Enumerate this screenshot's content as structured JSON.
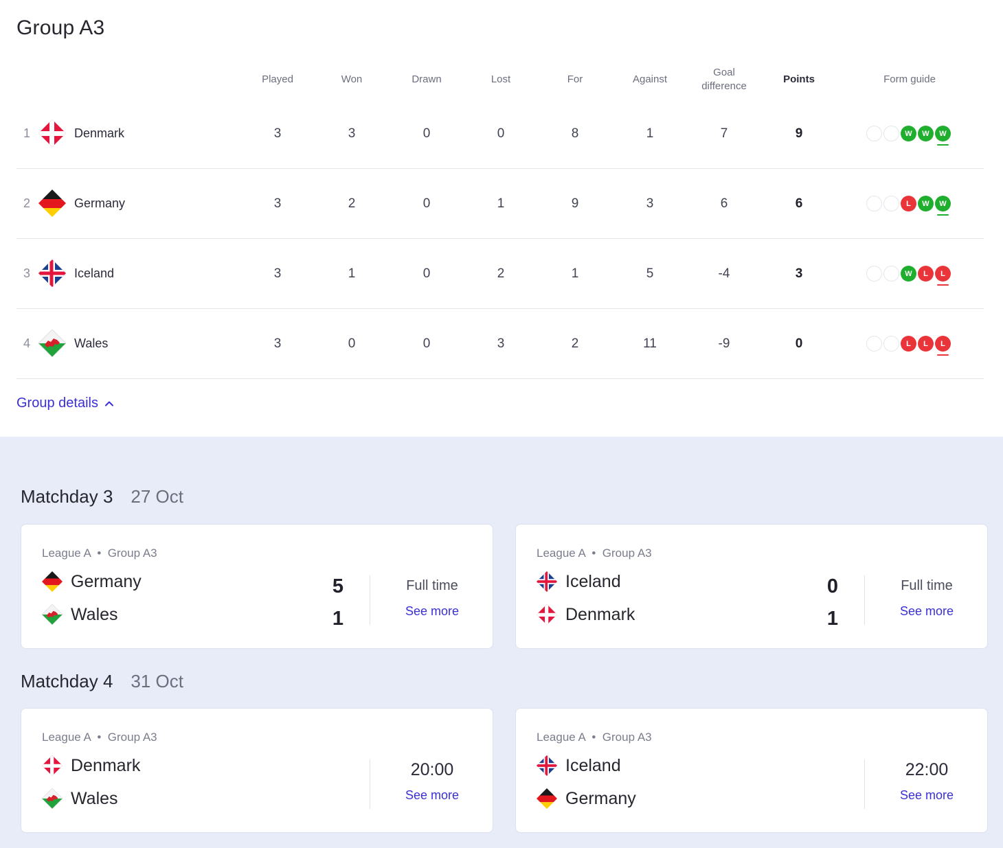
{
  "group": {
    "title": "Group A3"
  },
  "table": {
    "headers": {
      "played": "Played",
      "won": "Won",
      "drawn": "Drawn",
      "lost": "Lost",
      "for": "For",
      "against": "Against",
      "goal_difference": "Goal difference",
      "points": "Points",
      "form_guide": "Form guide"
    },
    "rows": [
      {
        "pos": "1",
        "team": "Denmark",
        "flag": "denmark-flag-icon",
        "played": "3",
        "won": "3",
        "drawn": "0",
        "lost": "0",
        "for": "8",
        "against": "1",
        "gd": "7",
        "points": "9",
        "form": [
          "",
          "",
          "W",
          "W",
          "W"
        ]
      },
      {
        "pos": "2",
        "team": "Germany",
        "flag": "germany-flag-icon",
        "played": "3",
        "won": "2",
        "drawn": "0",
        "lost": "1",
        "for": "9",
        "against": "3",
        "gd": "6",
        "points": "6",
        "form": [
          "",
          "",
          "L",
          "W",
          "W"
        ]
      },
      {
        "pos": "3",
        "team": "Iceland",
        "flag": "iceland-flag-icon",
        "played": "3",
        "won": "1",
        "drawn": "0",
        "lost": "2",
        "for": "1",
        "against": "5",
        "gd": "-4",
        "points": "3",
        "form": [
          "",
          "",
          "W",
          "L",
          "L"
        ]
      },
      {
        "pos": "4",
        "team": "Wales",
        "flag": "wales-flag-icon",
        "played": "3",
        "won": "0",
        "drawn": "0",
        "lost": "3",
        "for": "2",
        "against": "11",
        "gd": "-9",
        "points": "0",
        "form": [
          "",
          "",
          "L",
          "L",
          "L"
        ]
      }
    ]
  },
  "group_details_link": "Group details",
  "matchdays": [
    {
      "title": "Matchday 3",
      "date": "27 Oct",
      "matches": [
        {
          "league": "League A",
          "group": "Group A3",
          "home": "Germany",
          "away": "Wales",
          "home_score": "5",
          "away_score": "1",
          "status": "Full time",
          "see_more": "See more"
        },
        {
          "league": "League A",
          "group": "Group A3",
          "home": "Iceland",
          "away": "Denmark",
          "home_score": "0",
          "away_score": "1",
          "status": "Full time",
          "see_more": "See more"
        }
      ]
    },
    {
      "title": "Matchday 4",
      "date": "31 Oct",
      "matches": [
        {
          "league": "League A",
          "group": "Group A3",
          "home": "Denmark",
          "away": "Wales",
          "time": "20:00",
          "see_more": "See more"
        },
        {
          "league": "League A",
          "group": "Group A3",
          "home": "Iceland",
          "away": "Germany",
          "time": "22:00",
          "see_more": "See more"
        }
      ]
    }
  ],
  "colors": {
    "win": "#1fae2d",
    "loss": "#e9353a",
    "link": "#3a2fd6",
    "fixtures_bg": "#e8ecf8"
  }
}
